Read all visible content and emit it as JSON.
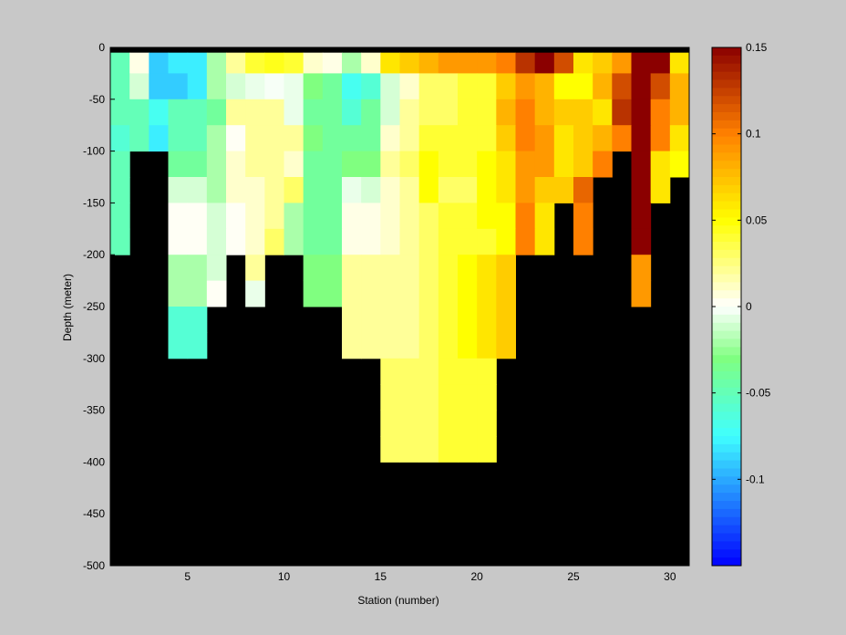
{
  "chart_data": {
    "type": "heatmap",
    "title": "",
    "xlabel": "Station (number)",
    "ylabel": "Depth (meter)",
    "xlim": [
      1,
      31
    ],
    "ylim": [
      -500,
      0
    ],
    "x_ticks": [
      5,
      10,
      15,
      20,
      25,
      30
    ],
    "y_ticks": [
      0,
      -50,
      -100,
      -150,
      -200,
      -250,
      -300,
      -350,
      -400,
      -450,
      -500
    ],
    "stations": [
      1,
      2,
      3,
      4,
      5,
      6,
      7,
      8,
      9,
      10,
      11,
      12,
      13,
      14,
      15,
      16,
      17,
      18,
      19,
      20,
      21,
      22,
      23,
      24,
      25,
      26,
      27,
      28,
      29,
      30
    ],
    "depth_bins": [
      -12.5,
      -37.5,
      -62.5,
      -87.5,
      -112.5,
      -137.5,
      -162.5,
      -187.5,
      -212.5,
      -237.5,
      -262.5,
      -287.5,
      -312.5,
      -337.5,
      -362.5,
      -387.5
    ],
    "no_data_color": "#000000",
    "background_color": "#c8c8c8",
    "values": [
      [
        -0.05,
        0.005,
        -0.09,
        -0.08,
        -0.08,
        -0.02,
        0.02,
        0.04,
        0.045,
        0.04,
        0.01,
        0.005,
        -0.02,
        0.01,
        0.06,
        0.07,
        0.08,
        0.09,
        0.09,
        0.09,
        0.1,
        0.13,
        0.15,
        0.12,
        0.06,
        0.07,
        0.09,
        0.15,
        0.15,
        0.06
      ],
      [
        -0.05,
        -0.01,
        -0.09,
        -0.09,
        -0.08,
        -0.02,
        -0.01,
        -0.005,
        -0.002,
        -0.005,
        -0.03,
        -0.04,
        -0.07,
        -0.06,
        -0.01,
        0.01,
        0.03,
        0.03,
        0.04,
        0.04,
        0.07,
        0.09,
        0.08,
        0.05,
        0.05,
        0.08,
        0.12,
        0.15,
        0.12,
        0.08
      ],
      [
        -0.05,
        -0.05,
        -0.07,
        -0.05,
        -0.05,
        -0.04,
        0.02,
        0.02,
        0.02,
        -0.005,
        -0.04,
        -0.04,
        -0.06,
        -0.04,
        -0.01,
        0.02,
        0.03,
        0.03,
        0.04,
        0.04,
        0.08,
        0.1,
        0.08,
        0.07,
        0.07,
        0.06,
        0.13,
        0.15,
        0.1,
        0.08
      ],
      [
        -0.06,
        -0.05,
        -0.08,
        -0.05,
        -0.05,
        -0.02,
        0.002,
        0.02,
        0.02,
        0.02,
        -0.03,
        -0.04,
        -0.04,
        -0.04,
        0.01,
        0.02,
        0.04,
        0.04,
        0.04,
        0.04,
        0.07,
        0.1,
        0.09,
        0.06,
        0.07,
        0.08,
        0.1,
        0.15,
        0.1,
        0.06
      ],
      [
        -0.05,
        null,
        null,
        -0.04,
        -0.04,
        -0.02,
        0.01,
        0.02,
        0.02,
        0.01,
        -0.04,
        -0.04,
        -0.03,
        -0.03,
        0.02,
        0.03,
        0.05,
        0.04,
        0.04,
        0.05,
        0.06,
        0.09,
        0.09,
        0.06,
        0.07,
        0.1,
        null,
        0.15,
        0.06,
        0.05
      ],
      [
        -0.05,
        null,
        null,
        -0.01,
        -0.01,
        -0.02,
        0.01,
        0.01,
        0.02,
        0.03,
        -0.04,
        -0.04,
        -0.005,
        -0.01,
        0.01,
        0.02,
        0.05,
        0.03,
        0.03,
        0.05,
        0.06,
        0.09,
        0.07,
        0.07,
        0.11,
        null,
        null,
        0.15,
        0.06,
        null
      ],
      [
        -0.05,
        null,
        null,
        0.002,
        0.002,
        -0.01,
        0.002,
        0.01,
        0.02,
        -0.02,
        -0.04,
        -0.04,
        0.005,
        0.005,
        0.01,
        0.02,
        0.03,
        0.04,
        0.04,
        0.05,
        0.05,
        0.1,
        0.06,
        null,
        0.1,
        null,
        null,
        0.15,
        null,
        null
      ],
      [
        -0.05,
        null,
        null,
        0.002,
        0.002,
        -0.01,
        0.002,
        0.01,
        0.03,
        -0.02,
        -0.04,
        -0.04,
        0.005,
        0.005,
        0.01,
        0.02,
        0.03,
        0.04,
        0.04,
        0.04,
        0.05,
        0.1,
        0.06,
        null,
        0.1,
        null,
        null,
        0.15,
        null,
        null
      ],
      [
        null,
        null,
        null,
        -0.02,
        -0.02,
        -0.01,
        null,
        0.02,
        null,
        null,
        -0.03,
        -0.03,
        0.02,
        0.02,
        0.02,
        0.02,
        0.03,
        0.04,
        0.05,
        0.06,
        0.07,
        null,
        null,
        null,
        null,
        null,
        null,
        0.09,
        null,
        null
      ],
      [
        null,
        null,
        null,
        -0.02,
        -0.02,
        0.002,
        null,
        -0.005,
        null,
        null,
        -0.03,
        -0.03,
        0.02,
        0.02,
        0.02,
        0.02,
        0.03,
        0.04,
        0.05,
        0.06,
        0.07,
        null,
        null,
        null,
        null,
        null,
        null,
        0.09,
        null,
        null
      ],
      [
        null,
        null,
        null,
        -0.06,
        -0.06,
        null,
        null,
        null,
        null,
        null,
        null,
        null,
        0.02,
        0.02,
        0.02,
        0.02,
        0.03,
        0.04,
        0.05,
        0.06,
        0.07,
        null,
        null,
        null,
        null,
        null,
        null,
        null,
        null,
        null
      ],
      [
        null,
        null,
        null,
        -0.06,
        -0.06,
        null,
        null,
        null,
        null,
        null,
        null,
        null,
        0.02,
        0.02,
        0.02,
        0.02,
        0.03,
        0.04,
        0.05,
        0.06,
        0.07,
        null,
        null,
        null,
        null,
        null,
        null,
        null,
        null,
        null
      ],
      [
        null,
        null,
        null,
        null,
        null,
        null,
        null,
        null,
        null,
        null,
        null,
        null,
        null,
        null,
        0.03,
        0.03,
        0.03,
        0.04,
        0.04,
        0.04,
        null,
        null,
        null,
        null,
        null,
        null,
        null,
        null,
        null,
        null
      ],
      [
        null,
        null,
        null,
        null,
        null,
        null,
        null,
        null,
        null,
        null,
        null,
        null,
        null,
        null,
        0.03,
        0.03,
        0.03,
        0.04,
        0.04,
        0.04,
        null,
        null,
        null,
        null,
        null,
        null,
        null,
        null,
        null,
        null
      ],
      [
        null,
        null,
        null,
        null,
        null,
        null,
        null,
        null,
        null,
        null,
        null,
        null,
        null,
        null,
        0.03,
        0.03,
        0.03,
        0.04,
        0.04,
        0.04,
        null,
        null,
        null,
        null,
        null,
        null,
        null,
        null,
        null,
        null
      ],
      [
        null,
        null,
        null,
        null,
        null,
        null,
        null,
        null,
        null,
        null,
        null,
        null,
        null,
        null,
        0.03,
        0.03,
        0.03,
        0.04,
        0.04,
        0.04,
        null,
        null,
        null,
        null,
        null,
        null,
        null,
        null,
        null,
        null
      ]
    ],
    "colorbar": {
      "min": -0.15,
      "max": 0.15,
      "ticks": [
        0.15,
        0.1,
        0.05,
        0,
        -0.05,
        -0.1
      ],
      "tick_labels": [
        "0.15",
        "0.1",
        "0.05",
        "0",
        "-0.05",
        "-0.1"
      ],
      "colormap": [
        [
          -0.15,
          "#0000ff"
        ],
        [
          -0.075,
          "#40ffff"
        ],
        [
          -0.03,
          "#80ff80"
        ],
        [
          0,
          "#ffffff"
        ],
        [
          0.05,
          "#ffff00"
        ],
        [
          0.1,
          "#ff8000"
        ],
        [
          0.15,
          "#8b0000"
        ]
      ]
    }
  }
}
